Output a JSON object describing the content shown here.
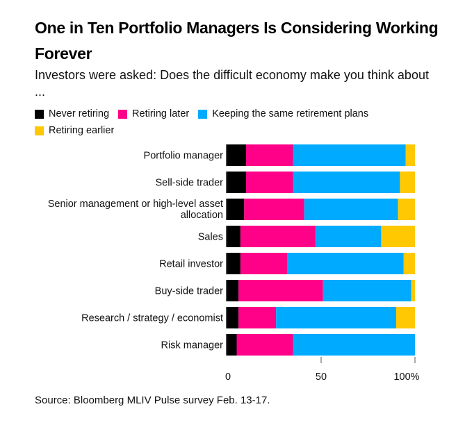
{
  "title": "One in Ten Portfolio Managers Is Considering Working Forever",
  "subtitle": "Investors were asked: Does the difficult economy make you think about ...",
  "source": "Source: Bloomberg MLIV Pulse survey Feb. 13-17.",
  "chart_data": {
    "type": "bar",
    "orientation": "horizontal",
    "stacked": true,
    "title": "One in Ten Portfolio Managers Is Considering Working Forever",
    "subtitle": "Investors were asked: Does the difficult economy make you think about ...",
    "categories": [
      "Portfolio manager",
      "Sell-side trader",
      "Senior management or high-level asset allocation",
      "Sales",
      "Retail investor",
      "Buy-side trader",
      "Research / strategy / economist",
      "Risk manager"
    ],
    "series": [
      {
        "name": "Never retiring",
        "color": "#000000",
        "values": [
          10,
          10,
          9,
          7,
          7,
          6,
          6,
          5
        ]
      },
      {
        "name": "Retiring later",
        "color": "#ff0088",
        "values": [
          25,
          25,
          32,
          40,
          25,
          45,
          20,
          30
        ]
      },
      {
        "name": "Keeping the same retirement plans",
        "color": "#00aaff",
        "values": [
          60,
          57,
          50,
          35,
          62,
          47,
          64,
          65
        ]
      },
      {
        "name": "Retiring earlier",
        "color": "#ffc800",
        "values": [
          5,
          8,
          9,
          18,
          6,
          2,
          10,
          0
        ]
      }
    ],
    "xlim": [
      0,
      100
    ],
    "xticks": [
      0,
      50,
      100
    ],
    "xtick_labels": [
      "0",
      "50",
      "100%"
    ],
    "xlabel": "",
    "ylabel": "",
    "legend": "top",
    "grid": false
  }
}
